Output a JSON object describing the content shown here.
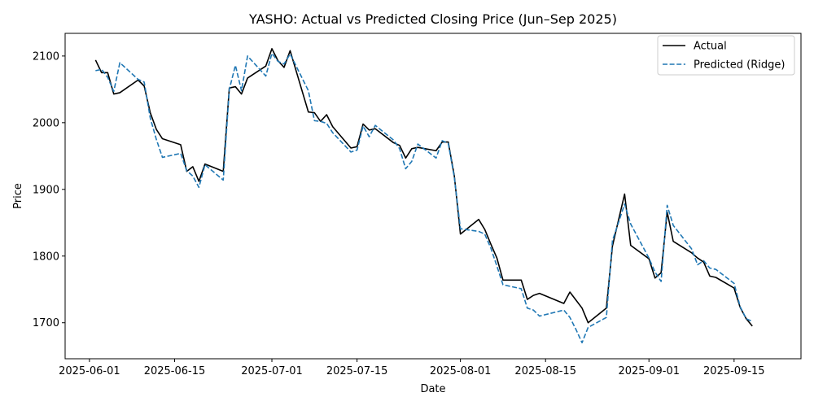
{
  "chart_data": {
    "type": "line",
    "title": "YASHO: Actual vs Predicted Closing Price (Jun–Sep 2025)",
    "xlabel": "Date",
    "ylabel": "Price",
    "x_type": "date",
    "xlim": [
      "2025-05-28",
      "2025-09-26"
    ],
    "ylim": [
      1646,
      2134
    ],
    "x_ticks": [
      "2025-06-01",
      "2025-06-15",
      "2025-07-01",
      "2025-07-15",
      "2025-08-01",
      "2025-08-15",
      "2025-09-01",
      "2025-09-15"
    ],
    "y_ticks": [
      1700,
      1800,
      1900,
      2000,
      2100
    ],
    "grid": false,
    "legend_position": "top-right",
    "x": [
      "2025-06-02",
      "2025-06-03",
      "2025-06-04",
      "2025-06-05",
      "2025-06-06",
      "2025-06-09",
      "2025-06-10",
      "2025-06-11",
      "2025-06-12",
      "2025-06-13",
      "2025-06-16",
      "2025-06-17",
      "2025-06-18",
      "2025-06-19",
      "2025-06-20",
      "2025-06-23",
      "2025-06-24",
      "2025-06-25",
      "2025-06-26",
      "2025-06-27",
      "2025-06-30",
      "2025-07-01",
      "2025-07-02",
      "2025-07-03",
      "2025-07-04",
      "2025-07-07",
      "2025-07-08",
      "2025-07-09",
      "2025-07-10",
      "2025-07-11",
      "2025-07-14",
      "2025-07-15",
      "2025-07-16",
      "2025-07-17",
      "2025-07-18",
      "2025-07-21",
      "2025-07-22",
      "2025-07-23",
      "2025-07-24",
      "2025-07-25",
      "2025-07-28",
      "2025-07-29",
      "2025-07-30",
      "2025-07-31",
      "2025-08-01",
      "2025-08-04",
      "2025-08-05",
      "2025-08-06",
      "2025-08-07",
      "2025-08-08",
      "2025-08-11",
      "2025-08-12",
      "2025-08-13",
      "2025-08-14",
      "2025-08-18",
      "2025-08-19",
      "2025-08-20",
      "2025-08-21",
      "2025-08-22",
      "2025-08-25",
      "2025-08-26",
      "2025-08-28",
      "2025-08-29",
      "2025-09-01",
      "2025-09-02",
      "2025-09-03",
      "2025-09-04",
      "2025-09-05",
      "2025-09-08",
      "2025-09-09",
      "2025-09-10",
      "2025-09-11",
      "2025-09-12",
      "2025-09-15",
      "2025-09-16",
      "2025-09-17",
      "2025-09-18"
    ],
    "series": [
      {
        "name": "Actual",
        "color": "#000000",
        "dash": "solid",
        "values": [
          2094,
          2075,
          2075,
          2043,
          2045,
          2064,
          2055,
          2015,
          1990,
          1976,
          1967,
          1927,
          1934,
          1912,
          1938,
          1927,
          2052,
          2054,
          2043,
          2067,
          2085,
          2111,
          2093,
          2083,
          2108,
          2016,
          2015,
          2002,
          2012,
          1994,
          1962,
          1964,
          1998,
          1989,
          1991,
          1970,
          1966,
          1947,
          1961,
          1963,
          1958,
          1971,
          1971,
          1920,
          1833,
          1855,
          1840,
          1818,
          1797,
          1764,
          1764,
          1735,
          1741,
          1744,
          1729,
          1746,
          1734,
          1722,
          1700,
          1722,
          1815,
          1893,
          1816,
          1796,
          1767,
          1775,
          1866,
          1822,
          1805,
          1797,
          1791,
          1770,
          1768,
          1752,
          1723,
          1706,
          1695
        ]
      },
      {
        "name": "Predicted (Ridge)",
        "color": "#1f77b4",
        "dash": "dashed",
        "values": [
          2078,
          2080,
          2068,
          2047,
          2090,
          2065,
          2061,
          2007,
          1975,
          1948,
          1954,
          1928,
          1920,
          1903,
          1937,
          1914,
          2050,
          2086,
          2048,
          2100,
          2070,
          2104,
          2092,
          2088,
          2103,
          2048,
          2003,
          2002,
          1999,
          1985,
          1956,
          1959,
          1995,
          1979,
          1996,
          1974,
          1961,
          1931,
          1942,
          1968,
          1947,
          1973,
          1969,
          1918,
          1841,
          1837,
          1833,
          1812,
          1785,
          1757,
          1751,
          1722,
          1719,
          1710,
          1719,
          1708,
          1690,
          1670,
          1693,
          1708,
          1823,
          1878,
          1848,
          1797,
          1776,
          1762,
          1876,
          1846,
          1811,
          1787,
          1793,
          1782,
          1780,
          1759,
          1724,
          1706,
          1702
        ]
      }
    ]
  }
}
